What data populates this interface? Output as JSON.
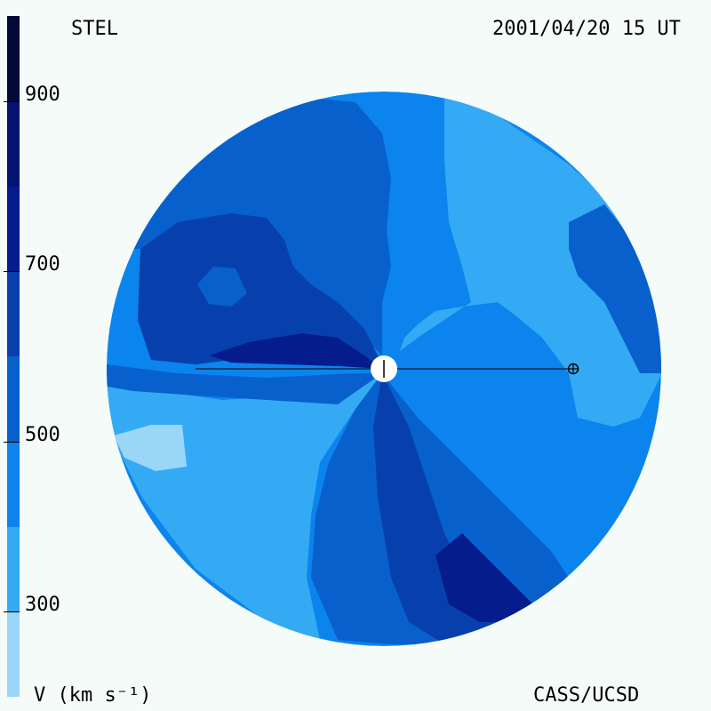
{
  "header": {
    "observatory": "STEL",
    "timestamp": "2001/04/20 15 UT"
  },
  "footer": {
    "units": "V (km s⁻¹)",
    "credit": "CASS/UCSD"
  },
  "colorbar": {
    "min": 200,
    "max": 1000,
    "ticks": [
      {
        "value": 900,
        "label": "900"
      },
      {
        "value": 700,
        "label": "700"
      },
      {
        "value": 500,
        "label": "500"
      },
      {
        "value": 300,
        "label": "300"
      }
    ],
    "bands": [
      {
        "from": 200,
        "to": 300,
        "color": "#9ad6f7"
      },
      {
        "from": 300,
        "to": 400,
        "color": "#35aaf4"
      },
      {
        "from": 400,
        "to": 500,
        "color": "#0b84ee"
      },
      {
        "from": 500,
        "to": 600,
        "color": "#0860cc"
      },
      {
        "from": 600,
        "to": 700,
        "color": "#0740ac"
      },
      {
        "from": 700,
        "to": 800,
        "color": "#041c8c"
      },
      {
        "from": 800,
        "to": 900,
        "color": "#031470"
      },
      {
        "from": 900,
        "to": 1000,
        "color": "#020a3a"
      }
    ]
  },
  "map": {
    "background_color": "#0b84ee",
    "sun_marker": "sun-icon",
    "earth_marker": "earth-icon"
  }
}
